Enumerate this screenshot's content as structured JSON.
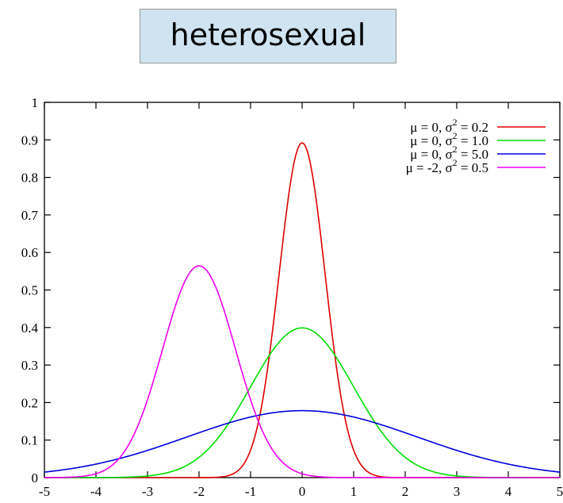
{
  "annotation": {
    "text": "heterosexual"
  },
  "chart_data": {
    "type": "line",
    "xlim": [
      -5,
      5
    ],
    "ylim": [
      0,
      1
    ],
    "xticks": [
      -5,
      -4,
      -3,
      -2,
      -1,
      0,
      1,
      2,
      3,
      4,
      5
    ],
    "yticks": [
      0,
      0.1,
      0.2,
      0.3,
      0.4,
      0.5,
      0.6,
      0.7,
      0.8,
      0.9,
      1
    ],
    "xtick_labels": [
      "-5",
      "-4",
      "-3",
      "-2",
      "-1",
      "0",
      "1",
      "2",
      "3",
      "4",
      "5"
    ],
    "ytick_labels": [
      "0",
      "0.1",
      "0.2",
      "0.3",
      "0.4",
      "0.5",
      "0.6",
      "0.7",
      "0.8",
      "0.9",
      "1"
    ],
    "grid": false,
    "legend_position": "top-right",
    "series": [
      {
        "name": "μ =  0, σ² = 0.2",
        "name_parts": [
          "μ =  0, σ",
          "2",
          " = 0.2"
        ],
        "mu": 0,
        "variance": 0.2,
        "color": "#dd0000"
      },
      {
        "name": "μ =  0, σ² = 1.0",
        "name_parts": [
          "μ =  0, σ",
          "2",
          " = 1.0"
        ],
        "mu": 0,
        "variance": 1.0,
        "color": "#00dd00"
      },
      {
        "name": "μ =  0, σ² = 5.0",
        "name_parts": [
          "μ =  0, σ",
          "2",
          " = 5.0"
        ],
        "mu": 0,
        "variance": 5.0,
        "color": "#0000dd"
      },
      {
        "name": "μ = -2, σ² = 0.5",
        "name_parts": [
          "μ = -2, σ",
          "2",
          " = 0.5"
        ],
        "mu": -2,
        "variance": 0.5,
        "color": "#ee00ee"
      }
    ]
  }
}
